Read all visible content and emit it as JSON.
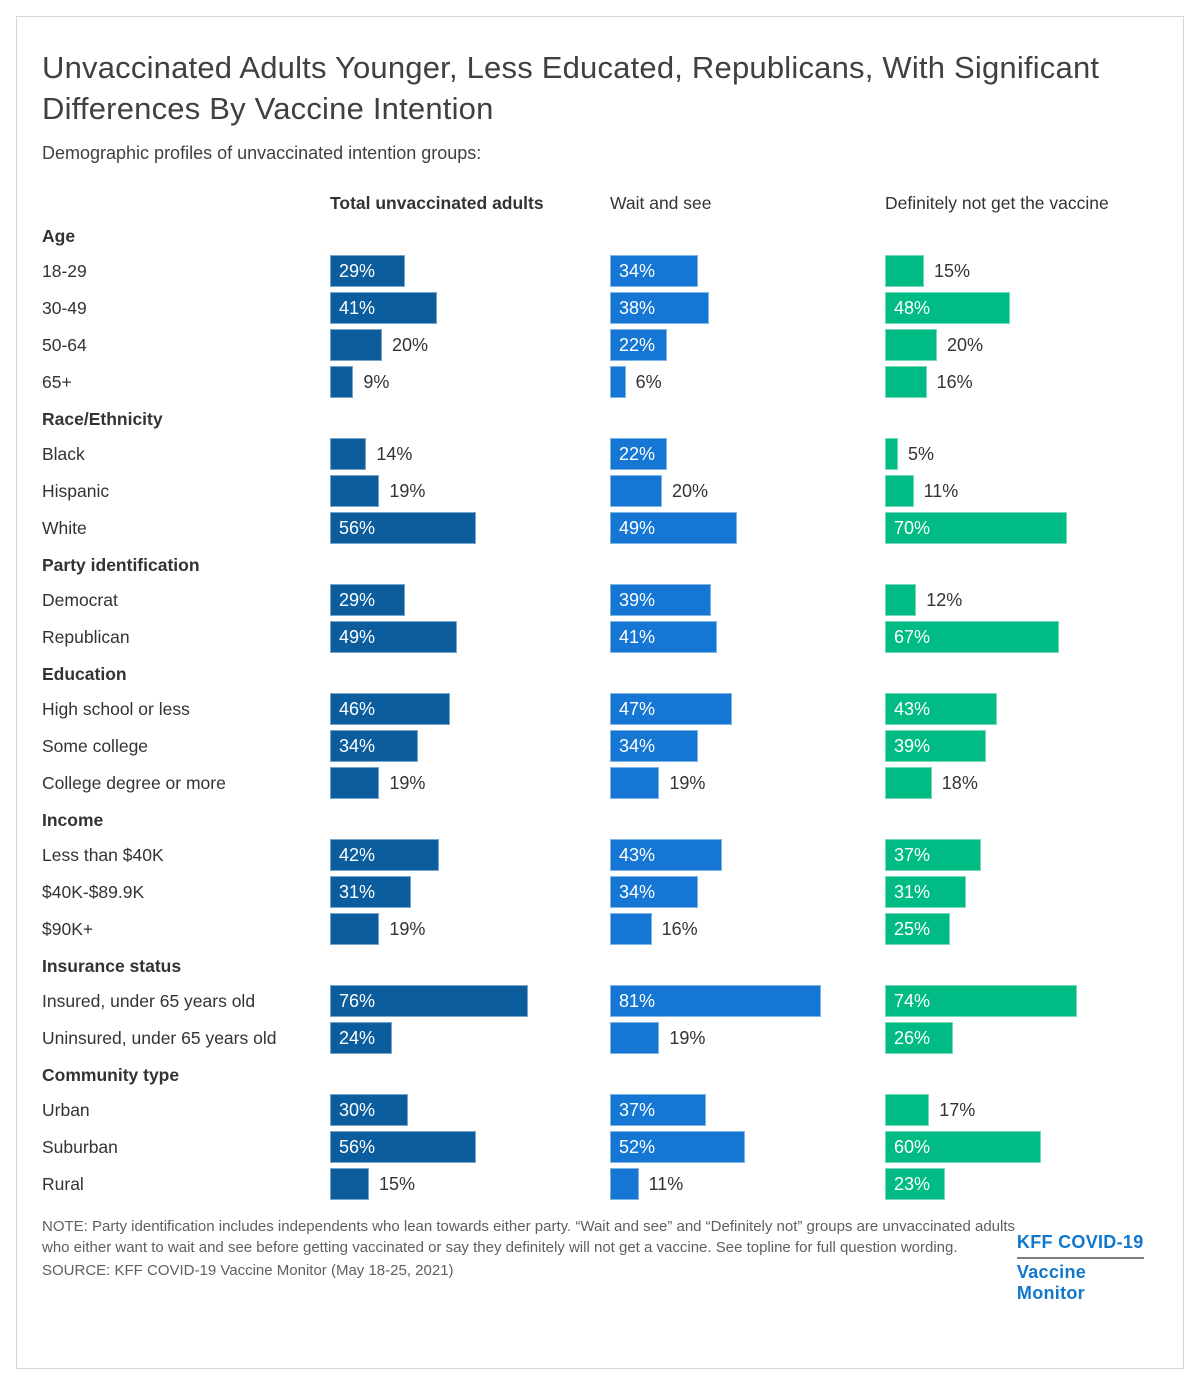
{
  "title": "Unvaccinated Adults Younger, Less Educated, Republicans, With Significant Differences By Vaccine Intention",
  "subtitle": "Demographic profiles of unvaccinated intention groups:",
  "columns": [
    {
      "label": "Total unvaccinated adults",
      "color": "#0b5d9d"
    },
    {
      "label": "Wait and see",
      "color": "#1577d3"
    },
    {
      "label": "Definitely not get the vaccine",
      "color": "#00bc84"
    }
  ],
  "sections": [
    {
      "header": "Age",
      "rows": [
        {
          "label": "18-29",
          "values": [
            29,
            34,
            15
          ]
        },
        {
          "label": "30-49",
          "values": [
            41,
            38,
            48
          ]
        },
        {
          "label": "50-64",
          "values": [
            20,
            22,
            20
          ]
        },
        {
          "label": "65+",
          "values": [
            9,
            6,
            16
          ]
        }
      ]
    },
    {
      "header": "Race/Ethnicity",
      "rows": [
        {
          "label": "Black",
          "values": [
            14,
            22,
            5
          ]
        },
        {
          "label": "Hispanic",
          "values": [
            19,
            20,
            11
          ]
        },
        {
          "label": "White",
          "values": [
            56,
            49,
            70
          ]
        }
      ]
    },
    {
      "header": "Party identification",
      "rows": [
        {
          "label": "Democrat",
          "values": [
            29,
            39,
            12
          ]
        },
        {
          "label": "Republican",
          "values": [
            49,
            41,
            67
          ]
        }
      ]
    },
    {
      "header": "Education",
      "rows": [
        {
          "label": "High school or less",
          "values": [
            46,
            47,
            43
          ]
        },
        {
          "label": "Some college",
          "values": [
            34,
            34,
            39
          ]
        },
        {
          "label": "College degree or more",
          "values": [
            19,
            19,
            18
          ]
        }
      ]
    },
    {
      "header": "Income",
      "rows": [
        {
          "label": "Less than $40K",
          "values": [
            42,
            43,
            37
          ]
        },
        {
          "label": "$40K-$89.9K",
          "values": [
            31,
            34,
            31
          ]
        },
        {
          "label": "$90K+",
          "values": [
            19,
            16,
            25
          ]
        }
      ]
    },
    {
      "header": "Insurance status",
      "rows": [
        {
          "label": "Insured, under 65 years old",
          "values": [
            76,
            81,
            74
          ]
        },
        {
          "label": "Uninsured, under 65 years old",
          "values": [
            24,
            19,
            26
          ]
        }
      ]
    },
    {
      "header": "Community type",
      "rows": [
        {
          "label": "Urban",
          "values": [
            30,
            37,
            17
          ]
        },
        {
          "label": "Suburban",
          "values": [
            56,
            52,
            60
          ]
        },
        {
          "label": "Rural",
          "values": [
            15,
            11,
            23
          ]
        }
      ]
    }
  ],
  "footer": {
    "note": "NOTE: Party identification includes independents who lean towards either party. “Wait and see” and “Definitely not” groups are unvaccinated adults who either want to wait and see before getting vaccinated or say they definitely will not get a vaccine. See topline for full question wording.",
    "source": "SOURCE: KFF COVID-19 Vaccine Monitor (May 18-25, 2021)"
  },
  "logo": {
    "line1": "KFF COVID-19",
    "line2": "Vaccine Monitor",
    "color": "#1177cc"
  },
  "chart_data": {
    "type": "bar",
    "orientation": "horizontal",
    "value_unit": "percent",
    "xlim": [
      0,
      100
    ],
    "grid": false,
    "title": "Unvaccinated Adults Younger, Less Educated, Republicans, With Significant Differences By Vaccine Intention",
    "subtitle": "Demographic profiles of unvaccinated intention groups:",
    "legend_position": "top (as column headers over three small-multiple columns)",
    "category_groups": [
      {
        "name": "Age",
        "categories": [
          "18-29",
          "30-49",
          "50-64",
          "65+"
        ]
      },
      {
        "name": "Race/Ethnicity",
        "categories": [
          "Black",
          "Hispanic",
          "White"
        ]
      },
      {
        "name": "Party identification",
        "categories": [
          "Democrat",
          "Republican"
        ]
      },
      {
        "name": "Education",
        "categories": [
          "High school or less",
          "Some college",
          "College degree or more"
        ]
      },
      {
        "name": "Income",
        "categories": [
          "Less than $40K",
          "$40K-$89.9K",
          "$90K+"
        ]
      },
      {
        "name": "Insurance status",
        "categories": [
          "Insured, under 65 years old",
          "Uninsured, under 65 years old"
        ]
      },
      {
        "name": "Community type",
        "categories": [
          "Urban",
          "Suburban",
          "Rural"
        ]
      }
    ],
    "categories": [
      "18-29",
      "30-49",
      "50-64",
      "65+",
      "Black",
      "Hispanic",
      "White",
      "Democrat",
      "Republican",
      "High school or less",
      "Some college",
      "College degree or more",
      "Less than $40K",
      "$40K-$89.9K",
      "$90K+",
      "Insured, under 65 years old",
      "Uninsured, under 65 years old",
      "Urban",
      "Suburban",
      "Rural"
    ],
    "series": [
      {
        "name": "Total unvaccinated adults",
        "color": "#0b5d9d",
        "values": [
          29,
          41,
          20,
          9,
          14,
          19,
          56,
          29,
          49,
          46,
          34,
          19,
          42,
          31,
          19,
          76,
          24,
          30,
          56,
          15
        ]
      },
      {
        "name": "Wait and see",
        "color": "#1577d3",
        "values": [
          34,
          38,
          22,
          6,
          22,
          20,
          49,
          39,
          41,
          47,
          34,
          19,
          43,
          34,
          16,
          81,
          19,
          37,
          52,
          11
        ]
      },
      {
        "name": "Definitely not get the vaccine",
        "color": "#00bc84",
        "values": [
          15,
          48,
          20,
          16,
          5,
          11,
          70,
          12,
          67,
          43,
          39,
          18,
          37,
          31,
          25,
          74,
          26,
          17,
          60,
          23
        ]
      }
    ],
    "data_labels": "shown on every bar; white inside bar when value >= 22, dark gray outside bar otherwise"
  }
}
